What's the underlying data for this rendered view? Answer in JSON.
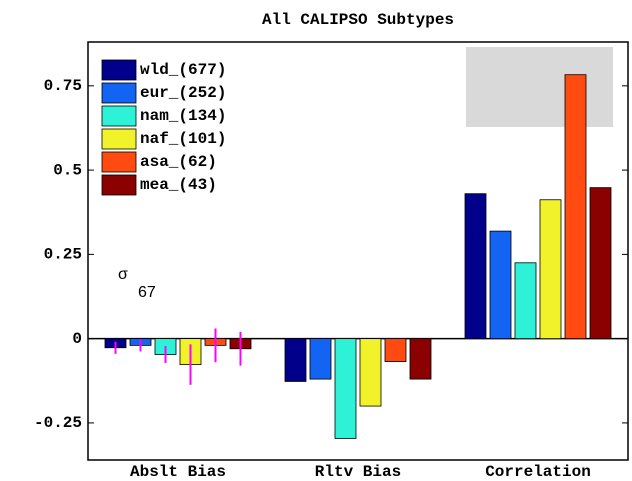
{
  "chart_data": {
    "type": "bar",
    "title": "All CALIPSO Subtypes",
    "categories": [
      "Abslt Bias",
      "Rltv Bias",
      "Correlation"
    ],
    "series": [
      {
        "name": "wld_(677)",
        "color": "#00008b",
        "values": [
          -0.027,
          -0.127,
          0.43
        ],
        "errors": [
          0.018,
          null,
          null
        ]
      },
      {
        "name": "eur_(252)",
        "color": "#1464f4",
        "values": [
          -0.02,
          -0.12,
          0.319
        ],
        "errors": [
          0.018,
          null,
          null
        ]
      },
      {
        "name": "nam_(134)",
        "color": "#2ef2d8",
        "values": [
          -0.047,
          -0.296,
          0.225
        ],
        "errors": [
          0.025,
          null,
          null
        ]
      },
      {
        "name": "naf_(101)",
        "color": "#f2f22a",
        "values": [
          -0.077,
          -0.2,
          0.412
        ],
        "errors": [
          0.06,
          null,
          null
        ]
      },
      {
        "name": "asa_(62)",
        "color": "#ff4a12",
        "values": [
          -0.02,
          -0.068,
          0.783
        ],
        "errors": [
          0.05,
          null,
          null
        ]
      },
      {
        "name": "mea_(43)",
        "color": "#8b0000",
        "values": [
          -0.03,
          -0.12,
          0.448
        ],
        "errors": [
          0.05,
          null,
          null
        ]
      }
    ],
    "error_color": "#ff00ff",
    "ylim": [
      -0.36,
      0.88
    ],
    "yticks": [
      -0.25,
      0,
      0.25,
      0.5,
      0.75
    ],
    "legend": "upper left",
    "annotation": {
      "symbol": "σ",
      "subscript": "67"
    }
  }
}
